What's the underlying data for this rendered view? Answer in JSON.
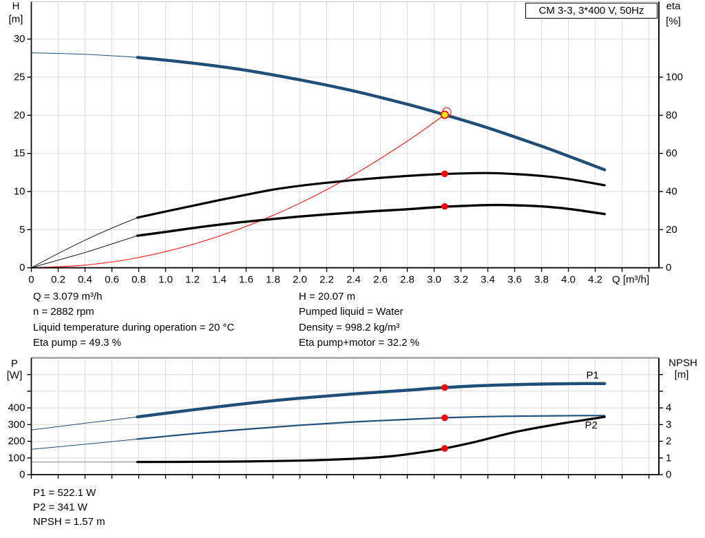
{
  "title_box": {
    "text": "CM 3-3, 3*400 V, 50Hz"
  },
  "colors": {
    "curve_blue": "#1F4E79",
    "curve_black": "#000000",
    "curve_red": "#FF2020",
    "dot_red": "#FF0000",
    "duty_yellow": "#FFE01A",
    "grid": "#DCDCDC",
    "axis": "#000000",
    "top_border_light": "#C6C6C6",
    "top_border_gray": "#A3A3A3",
    "npsh_thin_gray": "#909090",
    "label_blue": "#1F4E79"
  },
  "info_top": {
    "left": [
      "Q = 3.079 m³/h",
      "n = 2882 rpm",
      "Liquid temperature during operation = 20 °C",
      "Eta pump = 49.3 %"
    ],
    "right": [
      "H = 20.07 m",
      "Pumped liquid = Water",
      "Density = 998.2 kg/m³",
      "Eta pump+motor = 32.2 %"
    ]
  },
  "info_bottom": [
    "P1 = 522.1 W",
    "P2 = 341 W",
    "NPSH = 1.57 m"
  ],
  "chart_data": [
    {
      "name": "head-efficiency-chart",
      "type": "line",
      "title": "CM 3-3, 3*400 V, 50Hz",
      "x_axis": {
        "label": "Q [m³/h]",
        "range": [
          0,
          4.674
        ],
        "tick_step": 0.2,
        "tick_until": 4.6,
        "tick_labels": [
          "0",
          "0.2",
          "0.4",
          "0.6",
          "0.8",
          "1.0",
          "1.2",
          "1.4",
          "1.6",
          "1.8",
          "2.0",
          "2.2",
          "2.4",
          "2.6",
          "2.8",
          "3.0",
          "3.2",
          "3.4",
          "3.6",
          "3.8",
          "4.0",
          "4.2"
        ]
      },
      "y_left": {
        "label_lines": [
          "H",
          "[m]"
        ],
        "range": [
          0,
          34.9
        ],
        "tick_step": 5,
        "grid_until": 30,
        "tick_labels": [
          "0",
          "5",
          "10",
          "15",
          "20",
          "25",
          "30"
        ],
        "unlabeled_ticks": []
      },
      "y_right": {
        "label_lines": [
          "eta",
          "[%]"
        ],
        "range": [
          0,
          139.6
        ],
        "tick_step": 20,
        "tick_labels": [
          "0",
          "20",
          "40",
          "60",
          "80",
          "100"
        ],
        "unlabeled_ticks": []
      },
      "grid": true,
      "series": [
        {
          "name": "system-curve",
          "axis": "left",
          "color": "#FF2020",
          "thin_width": 1.2,
          "thick_width": 1.2,
          "split": null,
          "x": [
            0,
            0.4,
            0.8,
            1.2,
            1.6,
            2.0,
            2.4,
            2.8,
            3.079
          ],
          "y": [
            0,
            0.34,
            1.35,
            3.05,
            5.42,
            8.47,
            12.19,
            16.6,
            20.07
          ]
        },
        {
          "name": "eta-pump-motor-curve",
          "axis": "right",
          "color": "#000000",
          "thin_width": 0.9,
          "thick_width": 3.4,
          "split": 0.79,
          "x": [
            0,
            0.2,
            0.4,
            0.6,
            0.79,
            1.0,
            1.2,
            1.4,
            1.6,
            1.8,
            2.0,
            2.2,
            2.4,
            2.6,
            2.8,
            3.0,
            3.2,
            3.4,
            3.6,
            3.8,
            4.0,
            4.27
          ],
          "y": [
            0,
            4,
            8,
            12.5,
            16.8,
            18.8,
            20.8,
            22.6,
            24.2,
            25.6,
            26.9,
            28.0,
            29.0,
            29.9,
            30.7,
            31.7,
            32.4,
            32.9,
            32.8,
            32.2,
            30.9,
            28.2
          ]
        },
        {
          "name": "eta-pump-curve",
          "axis": "right",
          "color": "#000000",
          "thin_width": 0.9,
          "thick_width": 3.2,
          "split": 0.79,
          "x": [
            0,
            0.2,
            0.4,
            0.6,
            0.79,
            1.0,
            1.2,
            1.4,
            1.6,
            1.8,
            2.0,
            2.2,
            2.4,
            2.6,
            2.8,
            3.0,
            3.2,
            3.4,
            3.6,
            3.8,
            4.0,
            4.27
          ],
          "y": [
            0,
            7.5,
            14.5,
            20.8,
            26.3,
            29.5,
            32.5,
            35.5,
            38.3,
            41.0,
            43.0,
            44.6,
            46.0,
            47.2,
            48.2,
            49.0,
            49.5,
            49.7,
            49.2,
            48.2,
            46.6,
            43.3
          ]
        },
        {
          "name": "pump-qh-curve",
          "axis": "left",
          "color": "#1F4E79",
          "thin_width": 1.0,
          "thick_width": 4.4,
          "split": 0.79,
          "x": [
            0,
            0.4,
            0.79,
            1.2,
            1.6,
            2.0,
            2.4,
            2.8,
            3.079,
            3.4,
            3.8,
            4.0,
            4.27
          ],
          "y": [
            28.2,
            28.0,
            27.6,
            26.85,
            25.9,
            24.65,
            23.2,
            21.45,
            20.07,
            18.35,
            15.95,
            14.65,
            12.85
          ]
        }
      ],
      "markers": [
        {
          "name": "duty-point-ring",
          "axis": "left",
          "x": 3.094,
          "y": 20.43,
          "style": "ring"
        },
        {
          "name": "duty-point",
          "axis": "left",
          "x": 3.079,
          "y": 20.07,
          "style": "yellow"
        },
        {
          "name": "eta-pump-operating-point",
          "axis": "right",
          "x": 3.079,
          "y": 49.3,
          "style": "dot"
        },
        {
          "name": "eta-pump-motor-operating-point",
          "axis": "right",
          "x": 3.079,
          "y": 32.2,
          "style": "dot"
        }
      ],
      "labels": []
    },
    {
      "name": "power-npsh-chart",
      "type": "line",
      "title": "",
      "x_axis": {
        "label": "",
        "range": [
          0,
          4.674
        ],
        "tick_step": 0.2,
        "tick_until": 4.6,
        "tick_labels": []
      },
      "y_left": {
        "label_lines": [
          "P",
          "[W]"
        ],
        "range": [
          0,
          700
        ],
        "tick_step": 100,
        "grid_until": 600,
        "tick_labels": [
          "0",
          "100",
          "200",
          "300",
          "400"
        ],
        "unlabeled_ticks": [
          500,
          600
        ]
      },
      "y_right": {
        "label_lines": [
          "NPSH",
          "[m]"
        ],
        "range": [
          0,
          7.0
        ],
        "tick_step": 1,
        "tick_labels": [
          "0",
          "1",
          "2",
          "3",
          "4"
        ],
        "unlabeled_ticks": [
          5,
          6
        ]
      },
      "grid": true,
      "series": [
        {
          "name": "p2-curve",
          "axis": "left",
          "color": "#1F4E79",
          "thin_width": 1.0,
          "thick_width": 2.2,
          "split": 0.79,
          "x": [
            0,
            0.4,
            0.79,
            1.2,
            1.6,
            2.0,
            2.4,
            2.8,
            3.079,
            3.4,
            3.8,
            4.1,
            4.27
          ],
          "y": [
            152,
            182,
            213,
            245,
            272,
            296,
            316,
            331,
            341,
            348,
            352,
            354,
            354
          ]
        },
        {
          "name": "p1-curve",
          "axis": "left",
          "color": "#1F4E79",
          "thin_width": 1.0,
          "thick_width": 4.4,
          "split": 0.79,
          "x": [
            0,
            0.4,
            0.79,
            1.2,
            1.6,
            2.0,
            2.4,
            2.8,
            3.079,
            3.4,
            3.8,
            4.1,
            4.27
          ],
          "y": [
            268,
            308,
            346,
            388,
            426,
            458,
            484,
            506,
            522.1,
            535,
            543,
            546,
            546
          ]
        },
        {
          "name": "npsh-curve",
          "axis": "right",
          "color": "#000000",
          "thin_color": "#909090",
          "thin_width": 1.2,
          "thick_width": 3.2,
          "split": 0.79,
          "x": [
            0,
            0.79,
            1.2,
            1.6,
            2.0,
            2.4,
            2.7,
            3.0,
            3.079,
            3.3,
            3.6,
            3.9,
            4.1,
            4.27
          ],
          "y": [
            0.75,
            0.76,
            0.77,
            0.79,
            0.84,
            0.95,
            1.12,
            1.45,
            1.57,
            1.95,
            2.55,
            3.0,
            3.25,
            3.46
          ]
        }
      ],
      "markers": [
        {
          "name": "p1-operating-point",
          "axis": "left",
          "x": 3.079,
          "y": 522.1,
          "style": "dot"
        },
        {
          "name": "p2-operating-point",
          "axis": "left",
          "x": 3.079,
          "y": 341,
          "style": "dot"
        },
        {
          "name": "npsh-operating-point",
          "axis": "right",
          "x": 3.079,
          "y": 1.57,
          "style": "dot"
        }
      ],
      "labels": [
        {
          "name": "p1-curve-label",
          "text": "P1",
          "axis": "left",
          "x": 4.18,
          "y": 595,
          "color": "#1F4E79"
        },
        {
          "name": "p2-curve-label",
          "text": "P2",
          "axis": "left",
          "x": 4.17,
          "y": 296,
          "color": "#1F4E79"
        }
      ]
    }
  ]
}
